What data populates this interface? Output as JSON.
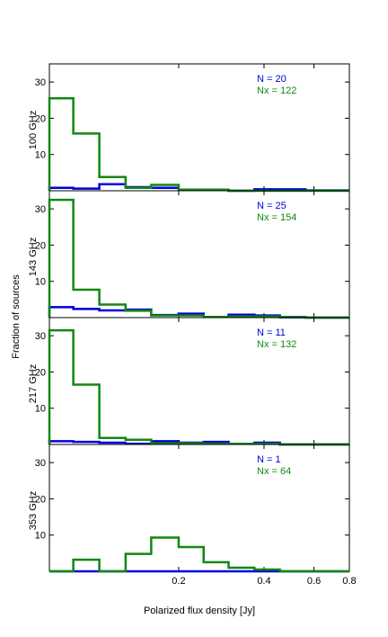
{
  "chart_data": {
    "type": "step-histogram",
    "xlabel": "Polarized flux density [Jy]",
    "ylabel": "Fraction of sources",
    "x_scale": "log",
    "x_ticks": [
      "0.2",
      "0.4",
      "0.6",
      "0.8"
    ],
    "x_tick_values": [
      0.2,
      0.4,
      0.6,
      0.8
    ],
    "x_range": [
      0.07,
      0.8
    ],
    "y_range": [
      0,
      35
    ],
    "y_ticks": [
      "10",
      "20",
      "30"
    ],
    "y_tick_values": [
      10,
      20,
      30
    ],
    "bin_edges": [
      0.07,
      0.085,
      0.105,
      0.13,
      0.16,
      0.2,
      0.245,
      0.3,
      0.37,
      0.455,
      0.56,
      0.69,
      0.8
    ],
    "colors": {
      "N": "#0000dd",
      "Nx": "#118811"
    },
    "panels": [
      {
        "label": "100 GHz",
        "N_label": "N = 20",
        "Nx_label": "Nx = 122",
        "blue": [
          0.8,
          0.6,
          1.8,
          1.0,
          0.8,
          0.2,
          0.2,
          0,
          0.4,
          0.4,
          0.1,
          0.1
        ],
        "green": [
          25.5,
          15.8,
          3.8,
          0.8,
          1.6,
          0.3,
          0.3,
          0,
          0,
          0,
          0,
          0
        ]
      },
      {
        "label": "143 GHz",
        "N_label": "N = 25",
        "Nx_label": "Nx = 154",
        "blue": [
          2.9,
          2.4,
          2.0,
          2.2,
          0.7,
          1.1,
          0.2,
          0.8,
          0.6,
          0.1,
          0,
          0
        ],
        "green": [
          32.5,
          7.7,
          3.6,
          1.9,
          0.6,
          0.6,
          0.2,
          0.3,
          0.3,
          0.2,
          0,
          0
        ]
      },
      {
        "label": "217 GHz",
        "N_label": "N = 11",
        "Nx_label": "Nx = 132",
        "blue": [
          0.9,
          0.7,
          0.5,
          0.2,
          0.9,
          0.5,
          0.7,
          0.2,
          0.5,
          0,
          0,
          0
        ],
        "green": [
          31.5,
          16.5,
          1.8,
          1.3,
          0.3,
          0.3,
          0.2,
          0.2,
          0.2,
          0,
          0,
          0
        ]
      },
      {
        "label": "353 GHz",
        "N_label": "N = 1",
        "Nx_label": "Nx = 64",
        "blue": [
          0,
          0,
          0,
          0,
          0,
          0,
          0,
          0,
          0,
          0,
          0,
          0
        ],
        "green": [
          0,
          3.2,
          0,
          4.8,
          9.3,
          6.7,
          2.5,
          1.0,
          0.5,
          0,
          0,
          0
        ]
      }
    ]
  }
}
